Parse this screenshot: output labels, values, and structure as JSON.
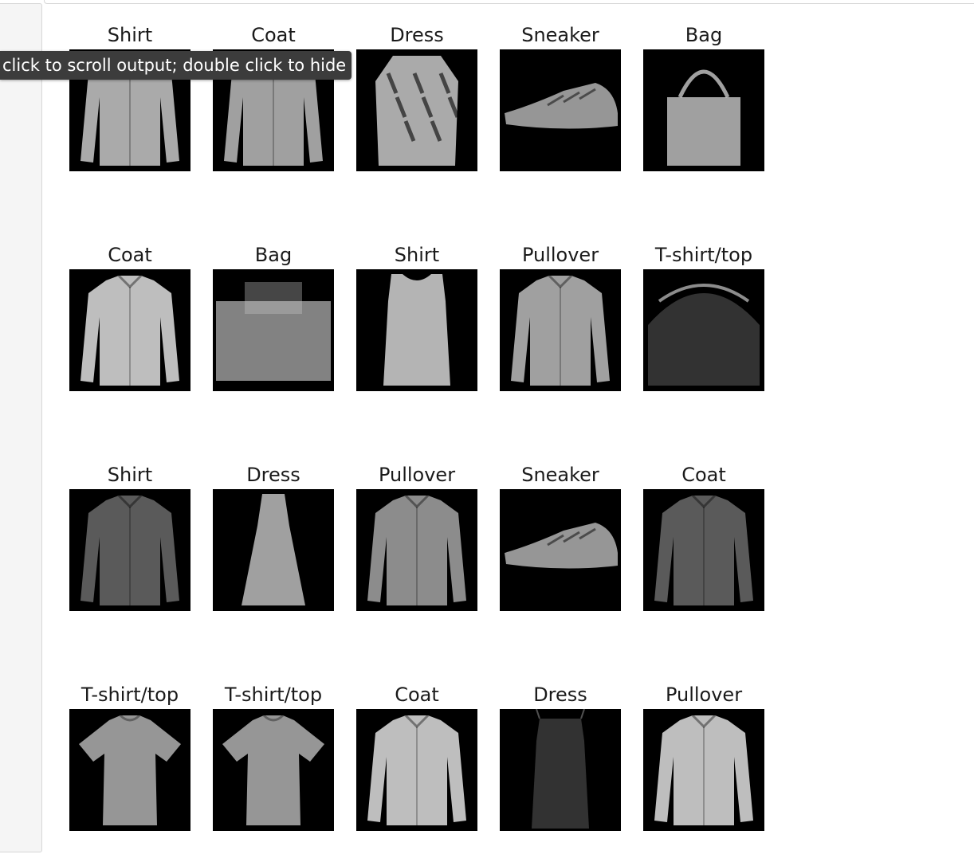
{
  "tooltip": {
    "text": "click to scroll output; double click to hide"
  },
  "grid": {
    "rows": [
      {
        "labels": [
          "Shirt",
          "Coat",
          "Dress",
          "Sneaker",
          "Bag"
        ]
      },
      {
        "labels": [
          "Coat",
          "Bag",
          "Shirt",
          "Pullover",
          "T-shirt/top"
        ]
      },
      {
        "labels": [
          "Shirt",
          "Dress",
          "Pullover",
          "Sneaker",
          "Coat"
        ]
      },
      {
        "labels": [
          "T-shirt/top",
          "T-shirt/top",
          "Coat",
          "Dress",
          "Pullover"
        ]
      }
    ]
  },
  "images": [
    [
      "shirt-light",
      "coat-light",
      "dress-pattern",
      "sneaker",
      "bag-handle"
    ],
    [
      "coat-white",
      "bag-wide",
      "tank-top",
      "pullover",
      "bag-dark"
    ],
    [
      "shirt-dark",
      "dress-long",
      "jacket",
      "sneaker-2",
      "coat-dark"
    ],
    [
      "tshirt",
      "tshirt-2",
      "coat-white-2",
      "dress-dark",
      "pullover-light"
    ]
  ]
}
